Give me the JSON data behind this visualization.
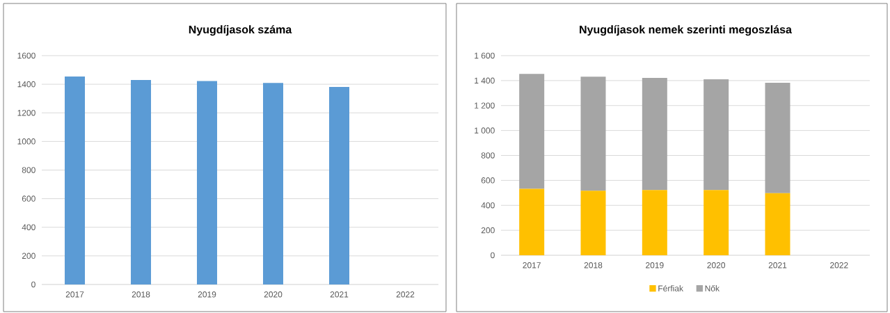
{
  "chart_data": [
    {
      "type": "bar",
      "title": "Nyugdíjasok száma",
      "categories": [
        "2017",
        "2018",
        "2019",
        "2020",
        "2021",
        "2022"
      ],
      "values": [
        1454,
        1430,
        1422,
        1409,
        1381,
        null
      ],
      "color": "#5b9bd5",
      "ylim": [
        0,
        1600
      ],
      "yticks": [
        0,
        200,
        400,
        600,
        800,
        1000,
        1200,
        1400,
        1600
      ],
      "grid": "y",
      "legend": false
    },
    {
      "type": "bar",
      "title": "Nyugdíjasok  nemek szerinti megoszlása",
      "categories": [
        "2017",
        "2018",
        "2019",
        "2020",
        "2021",
        "2022"
      ],
      "stacked": true,
      "series": [
        {
          "name": "Férfiak",
          "color": "#ffc000",
          "values": [
            533,
            517,
            522,
            522,
            498,
            null
          ]
        },
        {
          "name": "Nők",
          "color": "#a5a5a5",
          "values": [
            921,
            915,
            899,
            888,
            884,
            null
          ]
        }
      ],
      "ylim": [
        0,
        1600
      ],
      "yticks": [
        0,
        200,
        400,
        600,
        800,
        {
          "value": 1000,
          "label": "1 000"
        },
        {
          "value": 1200,
          "label": "1 200"
        },
        {
          "value": 1400,
          "label": "1 400"
        },
        {
          "value": 1600,
          "label": "1 600"
        }
      ],
      "grid": "y",
      "legend": "bottom"
    }
  ]
}
